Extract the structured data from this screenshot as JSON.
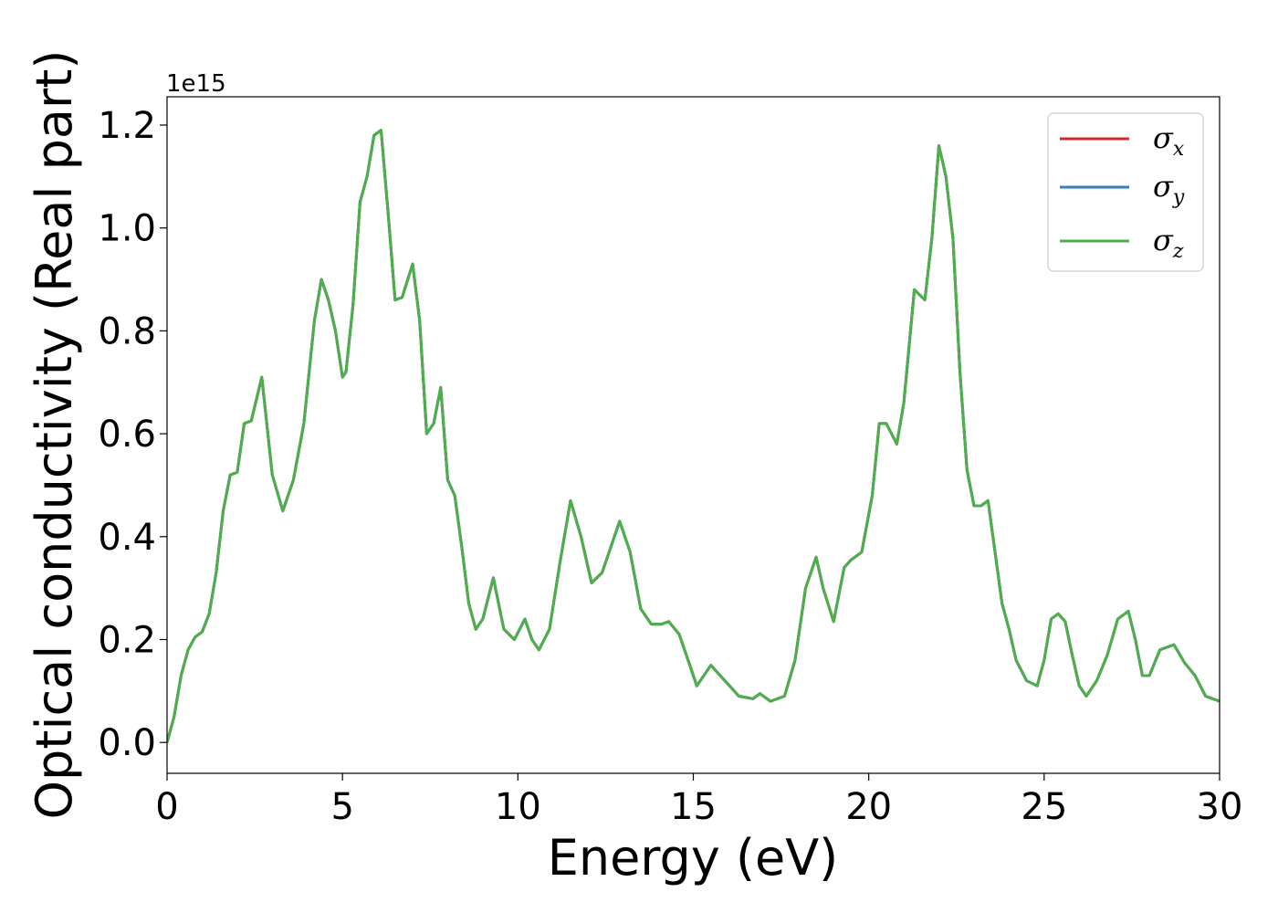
{
  "chart_data": {
    "type": "line",
    "title": "",
    "xlabel": "Energy (eV)",
    "ylabel": "Optical conductivity (Real part)",
    "y_offset_text": "1e15",
    "xlim": [
      0,
      30
    ],
    "ylim": [
      -0.06,
      1.255
    ],
    "xticks": [
      0,
      5,
      10,
      15,
      20,
      25,
      30
    ],
    "xtick_labels": [
      "0",
      "5",
      "10",
      "15",
      "20",
      "25",
      "30"
    ],
    "yticks": [
      0.0,
      0.2,
      0.4,
      0.6,
      0.8,
      1.0,
      1.2
    ],
    "ytick_labels": [
      "0.0",
      "0.2",
      "0.4",
      "0.6",
      "0.8",
      "1.0",
      "1.2"
    ],
    "grid": false,
    "legend_position": "upper-right",
    "legend": [
      {
        "symbol": "σ",
        "sub": "x",
        "color": "#d62728"
      },
      {
        "symbol": "σ",
        "sub": "y",
        "color": "#3a7dbb"
      },
      {
        "symbol": "σ",
        "sub": "z",
        "color": "#4daf4a"
      }
    ],
    "x": [
      0,
      0.2,
      0.4,
      0.6,
      0.8,
      1.0,
      1.2,
      1.4,
      1.6,
      1.8,
      2.0,
      2.2,
      2.4,
      2.7,
      3.0,
      3.3,
      3.6,
      3.9,
      4.2,
      4.4,
      4.6,
      4.8,
      5.0,
      5.1,
      5.3,
      5.5,
      5.7,
      5.9,
      6.1,
      6.3,
      6.5,
      6.7,
      7.0,
      7.2,
      7.4,
      7.6,
      7.8,
      8.0,
      8.2,
      8.4,
      8.6,
      8.8,
      9.0,
      9.3,
      9.6,
      9.9,
      10.2,
      10.4,
      10.6,
      10.9,
      11.2,
      11.5,
      11.8,
      12.1,
      12.4,
      12.7,
      12.9,
      13.2,
      13.5,
      13.8,
      14.1,
      14.3,
      14.6,
      14.9,
      15.1,
      15.5,
      15.9,
      16.3,
      16.7,
      16.9,
      17.2,
      17.6,
      17.9,
      18.2,
      18.5,
      18.7,
      19.0,
      19.3,
      19.5,
      19.8,
      20.1,
      20.3,
      20.5,
      20.8,
      21.0,
      21.3,
      21.6,
      21.8,
      22.0,
      22.2,
      22.4,
      22.6,
      22.8,
      23.0,
      23.2,
      23.4,
      23.6,
      23.8,
      24.0,
      24.2,
      24.5,
      24.8,
      25.0,
      25.2,
      25.4,
      25.6,
      25.8,
      26.0,
      26.2,
      26.5,
      26.8,
      27.1,
      27.4,
      27.6,
      27.8,
      28.0,
      28.3,
      28.7,
      29.0,
      29.3,
      29.6,
      30.0
    ],
    "series": [
      {
        "color": "#4daf4a",
        "values": [
          0.0,
          0.05,
          0.13,
          0.18,
          0.205,
          0.215,
          0.25,
          0.33,
          0.45,
          0.52,
          0.525,
          0.62,
          0.625,
          0.71,
          0.52,
          0.45,
          0.51,
          0.62,
          0.82,
          0.9,
          0.86,
          0.8,
          0.71,
          0.72,
          0.85,
          1.05,
          1.1,
          1.18,
          1.19,
          1.03,
          0.86,
          0.865,
          0.93,
          0.82,
          0.6,
          0.62,
          0.69,
          0.51,
          0.48,
          0.38,
          0.27,
          0.22,
          0.24,
          0.32,
          0.22,
          0.2,
          0.24,
          0.2,
          0.18,
          0.22,
          0.35,
          0.47,
          0.4,
          0.31,
          0.33,
          0.39,
          0.43,
          0.37,
          0.26,
          0.23,
          0.23,
          0.235,
          0.21,
          0.15,
          0.11,
          0.15,
          0.12,
          0.09,
          0.085,
          0.095,
          0.08,
          0.09,
          0.16,
          0.3,
          0.36,
          0.3,
          0.235,
          0.34,
          0.355,
          0.37,
          0.48,
          0.62,
          0.62,
          0.58,
          0.66,
          0.88,
          0.86,
          0.98,
          1.16,
          1.1,
          0.98,
          0.72,
          0.53,
          0.46,
          0.46,
          0.47,
          0.37,
          0.27,
          0.22,
          0.16,
          0.12,
          0.11,
          0.16,
          0.24,
          0.25,
          0.235,
          0.17,
          0.11,
          0.09,
          0.12,
          0.17,
          0.24,
          0.255,
          0.2,
          0.13,
          0.13,
          0.18,
          0.19,
          0.155,
          0.13,
          0.09,
          0.08
        ]
      }
    ]
  }
}
